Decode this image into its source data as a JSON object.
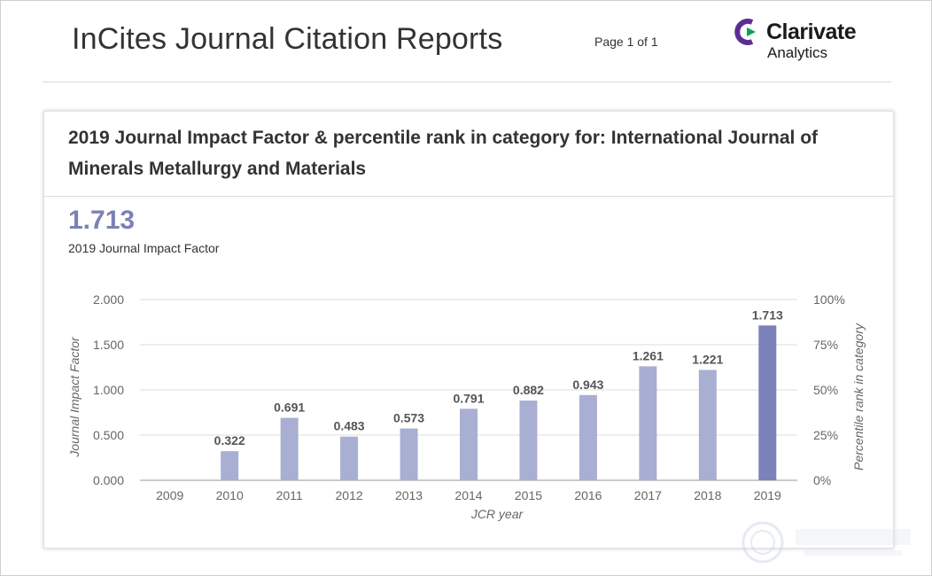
{
  "header": {
    "title": "InCites Journal Citation Reports",
    "page_indicator": "Page 1 of 1",
    "logo": {
      "name": "Clarivate",
      "sub": "Analytics",
      "icon": "clarivate-logo-mark",
      "colors": [
        "#5c2d91",
        "#00a651"
      ]
    }
  },
  "card": {
    "title": "2019 Journal Impact Factor & percentile rank in category for: International Journal of Minerals Metallurgy and Materials",
    "jif_value": "1.713",
    "jif_label": "2019 Journal Impact Factor"
  },
  "chart_data": {
    "type": "bar",
    "title": "",
    "xlabel": "JCR year",
    "ylabel": "Journal Impact Factor",
    "y2label": "Percentile rank in category",
    "categories": [
      "2009",
      "2010",
      "2011",
      "2012",
      "2013",
      "2014",
      "2015",
      "2016",
      "2017",
      "2018",
      "2019"
    ],
    "values": [
      null,
      0.322,
      0.691,
      0.483,
      0.573,
      0.791,
      0.882,
      0.943,
      1.261,
      1.221,
      1.713
    ],
    "data_labels": [
      "",
      "0.322",
      "0.691",
      "0.483",
      "0.573",
      "0.791",
      "0.882",
      "0.943",
      "1.261",
      "1.221",
      "1.713"
    ],
    "ylim": [
      0,
      2
    ],
    "yticks": [
      "0.000",
      "0.500",
      "1.000",
      "1.500",
      "2.000"
    ],
    "y2lim": [
      0,
      100
    ],
    "y2ticks": [
      "0%",
      "25%",
      "50%",
      "75%",
      "100%"
    ],
    "grid": true,
    "bar_color": "#a9aed3",
    "highlight_color": "#7b82b9",
    "highlight_category": "2019"
  }
}
